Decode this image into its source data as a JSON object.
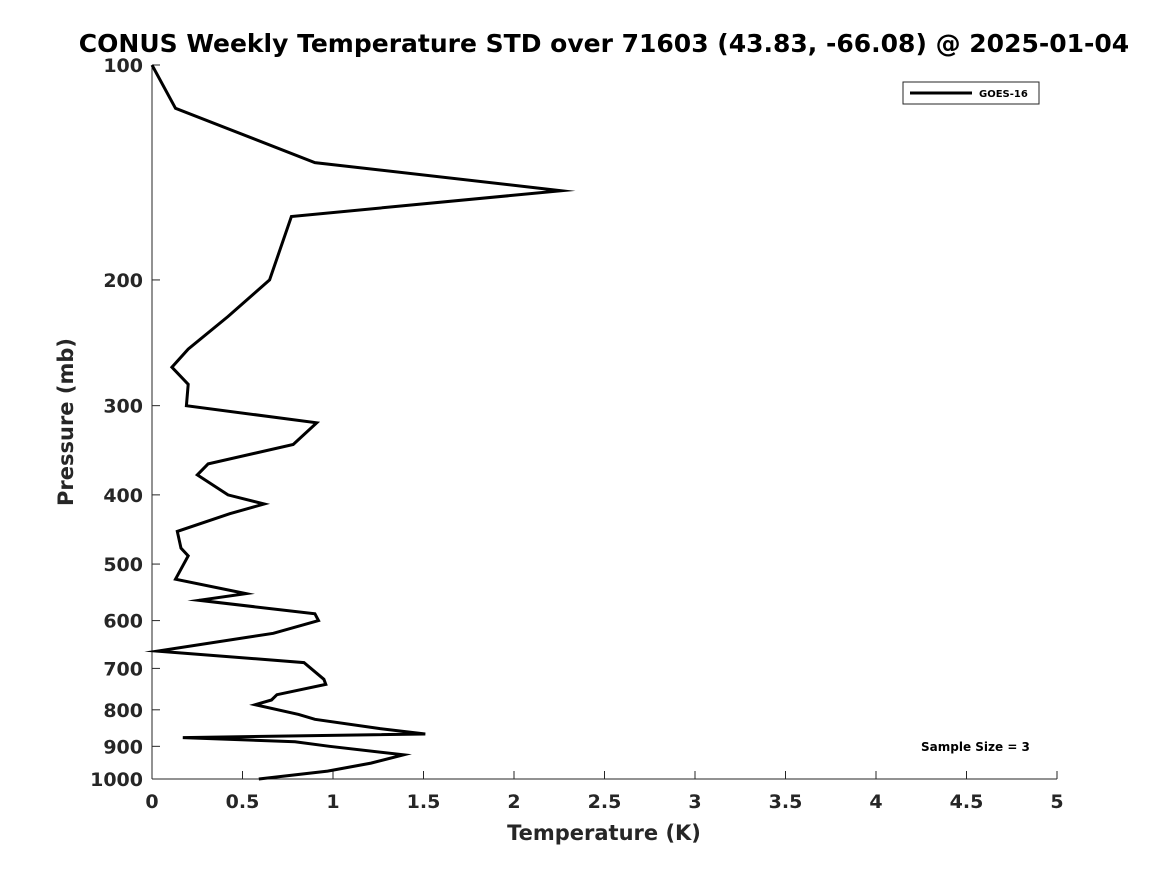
{
  "chart_data": {
    "type": "line",
    "title": "CONUS Weekly Temperature STD over 71603 (43.83, -66.08) @ 2025-01-04",
    "xlabel": "Temperature (K)",
    "ylabel": "Pressure (mb)",
    "xlim": [
      0,
      5
    ],
    "ylim": [
      1000,
      100
    ],
    "yscale": "log",
    "x_ticks": [
      0,
      0.5,
      1,
      1.5,
      2,
      2.5,
      3,
      3.5,
      4,
      4.5,
      5
    ],
    "x_tick_labels": [
      "0",
      "0.5",
      "1",
      "1.5",
      "2",
      "2.5",
      "3",
      "3.5",
      "4",
      "4.5",
      "5"
    ],
    "y_ticks": [
      100,
      200,
      300,
      400,
      500,
      600,
      700,
      800,
      900,
      1000
    ],
    "y_tick_labels": [
      "100",
      "200",
      "300",
      "400",
      "500",
      "600",
      "700",
      "800",
      "900",
      "1000"
    ],
    "grid": false,
    "legend_position": "top-right",
    "annotation": "Sample Size = 3",
    "series": [
      {
        "name": "GOES-16",
        "color": "#000000",
        "points": [
          [
            0.0,
            100
          ],
          [
            0.13,
            115
          ],
          [
            0.9,
            137
          ],
          [
            2.26,
            150
          ],
          [
            0.77,
            163
          ],
          [
            0.65,
            200
          ],
          [
            0.42,
            225
          ],
          [
            0.2,
            250
          ],
          [
            0.11,
            265
          ],
          [
            0.2,
            280
          ],
          [
            0.19,
            300
          ],
          [
            0.91,
            317
          ],
          [
            0.78,
            340
          ],
          [
            0.31,
            362
          ],
          [
            0.25,
            375
          ],
          [
            0.42,
            400
          ],
          [
            0.62,
            412
          ],
          [
            0.43,
            425
          ],
          [
            0.14,
            450
          ],
          [
            0.16,
            475
          ],
          [
            0.2,
            487
          ],
          [
            0.13,
            525
          ],
          [
            0.52,
            550
          ],
          [
            0.26,
            562
          ],
          [
            0.9,
            587
          ],
          [
            0.92,
            600
          ],
          [
            0.67,
            625
          ],
          [
            0.03,
            662
          ],
          [
            0.84,
            687
          ],
          [
            0.95,
            725
          ],
          [
            0.96,
            737
          ],
          [
            0.69,
            762
          ],
          [
            0.66,
            775
          ],
          [
            0.57,
            787
          ],
          [
            0.81,
            812
          ],
          [
            0.9,
            825
          ],
          [
            1.26,
            850
          ],
          [
            1.51,
            865
          ],
          [
            0.17,
            875
          ],
          [
            0.79,
            887
          ],
          [
            0.98,
            900
          ],
          [
            1.39,
            925
          ],
          [
            1.21,
            950
          ],
          [
            0.97,
            975
          ],
          [
            0.59,
            1000
          ]
        ]
      }
    ]
  }
}
